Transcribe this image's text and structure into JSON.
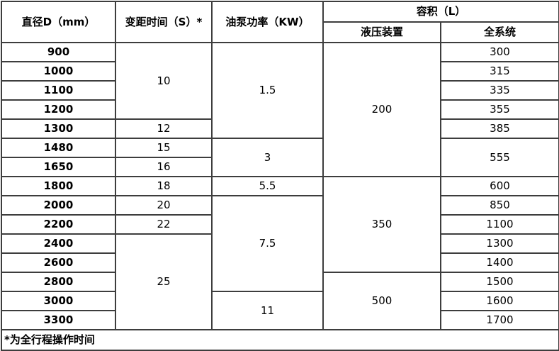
{
  "page": {
    "background": "#ffffff"
  },
  "colors": {
    "border": "#3d3d3d",
    "text": "#000000",
    "background": "#ffffff"
  },
  "table": {
    "headers": {
      "diameter": "直径D（mm）",
      "pitch_time": "变距时间（S）*",
      "pump_power": "油泵功率（KW）",
      "volume_group": "容积（L）",
      "hydraulic": "液压装置",
      "system": "全系统"
    },
    "footnote": "*为全行程操作时间",
    "rows": [
      {
        "cells": [
          {
            "col": "diameter",
            "text": "900"
          },
          {
            "col": "pitch_time",
            "text": "10",
            "rowspan": 4
          },
          {
            "col": "pump_power",
            "text": "1.5",
            "rowspan": 5
          },
          {
            "col": "hydraulic",
            "text": "200",
            "rowspan": 7
          },
          {
            "col": "system",
            "text": "300"
          }
        ]
      },
      {
        "cells": [
          {
            "col": "diameter",
            "text": "1000"
          },
          {
            "col": "system",
            "text": "315"
          }
        ]
      },
      {
        "cells": [
          {
            "col": "diameter",
            "text": "1100"
          },
          {
            "col": "system",
            "text": "335"
          }
        ]
      },
      {
        "cells": [
          {
            "col": "diameter",
            "text": "1200"
          },
          {
            "col": "system",
            "text": "355"
          }
        ]
      },
      {
        "cells": [
          {
            "col": "diameter",
            "text": "1300"
          },
          {
            "col": "pitch_time",
            "text": "12"
          },
          {
            "col": "system",
            "text": "385"
          }
        ]
      },
      {
        "cells": [
          {
            "col": "diameter",
            "text": "1480"
          },
          {
            "col": "pitch_time",
            "text": "15"
          },
          {
            "col": "pump_power",
            "text": "3",
            "rowspan": 2
          },
          {
            "col": "system",
            "text": "555",
            "rowspan": 2
          }
        ]
      },
      {
        "cells": [
          {
            "col": "diameter",
            "text": "1650"
          },
          {
            "col": "pitch_time",
            "text": "16"
          }
        ]
      },
      {
        "cells": [
          {
            "col": "diameter",
            "text": "1800"
          },
          {
            "col": "pitch_time",
            "text": "18"
          },
          {
            "col": "pump_power",
            "text": "5.5"
          },
          {
            "col": "hydraulic",
            "text": "350",
            "rowspan": 5
          },
          {
            "col": "system",
            "text": "600"
          }
        ]
      },
      {
        "cells": [
          {
            "col": "diameter",
            "text": "2000"
          },
          {
            "col": "pitch_time",
            "text": "20"
          },
          {
            "col": "pump_power",
            "text": "7.5",
            "rowspan": 5
          },
          {
            "col": "system",
            "text": "850"
          }
        ]
      },
      {
        "cells": [
          {
            "col": "diameter",
            "text": "2200"
          },
          {
            "col": "pitch_time",
            "text": "22"
          },
          {
            "col": "system",
            "text": "1100"
          }
        ]
      },
      {
        "cells": [
          {
            "col": "diameter",
            "text": "2400"
          },
          {
            "col": "pitch_time",
            "text": "25",
            "rowspan": 5
          },
          {
            "col": "system",
            "text": "1300"
          }
        ]
      },
      {
        "cells": [
          {
            "col": "diameter",
            "text": "2600"
          },
          {
            "col": "system",
            "text": "1400"
          }
        ]
      },
      {
        "cells": [
          {
            "col": "diameter",
            "text": "2800"
          },
          {
            "col": "hydraulic",
            "text": "500",
            "rowspan": 3
          },
          {
            "col": "system",
            "text": "1500"
          }
        ]
      },
      {
        "cells": [
          {
            "col": "diameter",
            "text": "3000"
          },
          {
            "col": "pump_power",
            "text": "11",
            "rowspan": 2
          },
          {
            "col": "system",
            "text": "1600"
          }
        ]
      },
      {
        "cells": [
          {
            "col": "diameter",
            "text": "3300"
          },
          {
            "col": "system",
            "text": "1700"
          }
        ]
      }
    ]
  },
  "chart_data": {
    "type": "table",
    "columns": [
      "直径D（mm）",
      "变距时间（S）*",
      "油泵功率（KW）",
      "容积（L）-液压装置",
      "容积（L）-全系统"
    ],
    "rows": [
      [
        "900",
        "10",
        "1.5",
        "200",
        "300"
      ],
      [
        "1000",
        "10",
        "1.5",
        "200",
        "315"
      ],
      [
        "1100",
        "10",
        "1.5",
        "200",
        "335"
      ],
      [
        "1200",
        "10",
        "1.5",
        "200",
        "355"
      ],
      [
        "1300",
        "12",
        "1.5",
        "200",
        "385"
      ],
      [
        "1480",
        "15",
        "3",
        "200",
        "555"
      ],
      [
        "1650",
        "16",
        "3",
        "200",
        "555"
      ],
      [
        "1800",
        "18",
        "5.5",
        "350",
        "600"
      ],
      [
        "2000",
        "20",
        "7.5",
        "350",
        "850"
      ],
      [
        "2200",
        "22",
        "7.5",
        "350",
        "1100"
      ],
      [
        "2400",
        "25",
        "7.5",
        "350",
        "1300"
      ],
      [
        "2600",
        "25",
        "7.5",
        "350",
        "1400"
      ],
      [
        "2800",
        "25",
        "7.5",
        "500",
        "1500"
      ],
      [
        "3000",
        "25",
        "11",
        "500",
        "1600"
      ],
      [
        "3300",
        "25",
        "11",
        "500",
        "1700"
      ]
    ],
    "footnote": "*为全行程操作时间"
  }
}
